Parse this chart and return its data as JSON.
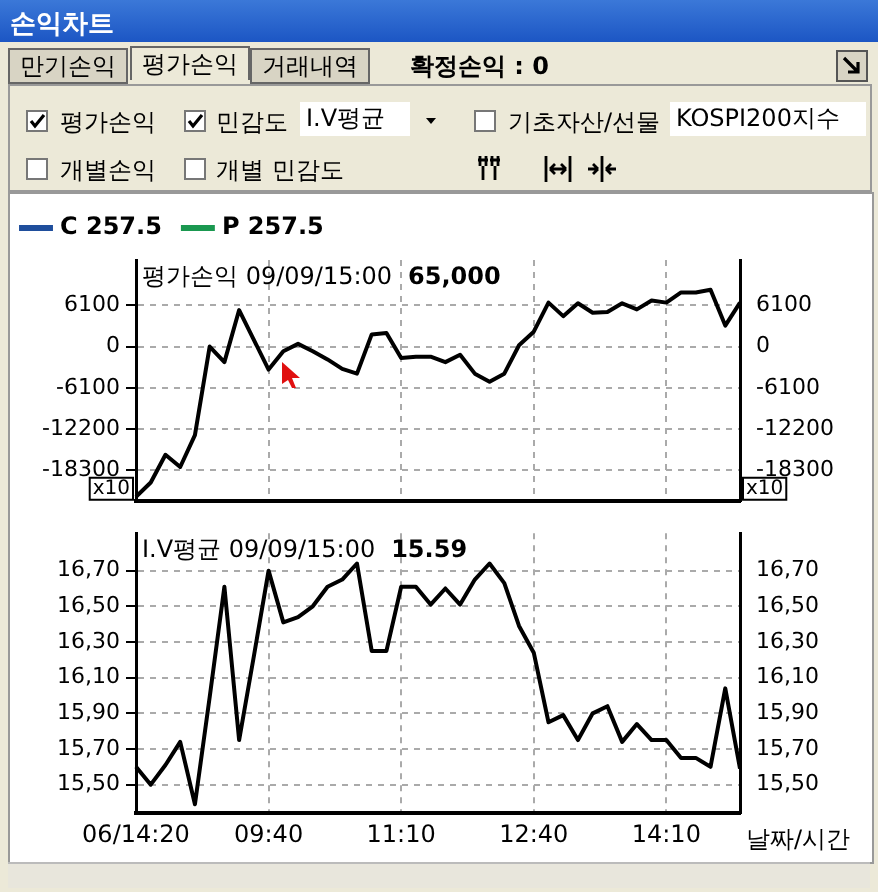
{
  "chart_data": [
    {
      "type": "other",
      "title": "손익차트",
      "annotations": [
        "만기손익",
        "평가손익",
        "거래내역",
        "확정손익 : 0",
        "평가손익",
        "민감도",
        "I.V평균",
        "기초자산/선물",
        "KOSPI200지수",
        "개별손익",
        "개별 민감도"
      ]
    },
    {
      "type": "line",
      "title": "평가손익 09/09/15:00",
      "subtitle": "65,000",
      "categories": [
        null,
        null,
        null,
        null,
        null,
        null,
        null,
        null,
        null,
        null,
        null,
        null,
        null,
        null,
        null,
        null,
        null,
        null,
        null,
        null,
        null,
        null,
        null,
        null,
        null,
        null,
        null,
        null,
        null,
        null,
        null,
        null,
        null,
        null,
        null,
        null,
        null,
        null,
        null,
        null,
        null,
        null
      ],
      "series": [
        {
          "color": "#000000",
          "values": [
            -22200,
            -20100,
            -16000,
            -17800,
            -13100,
            0,
            -2300,
            5400,
            1000,
            -3400,
            -700,
            400,
            -700,
            -1900,
            -3300,
            -4000,
            1800,
            2000,
            -1700,
            -1500,
            -1500,
            -2300,
            -1200,
            -4000,
            -5200,
            -4000,
            200,
            2200,
            6500,
            4500,
            6400,
            5000,
            5100,
            6400,
            5500,
            6800,
            6500,
            8000,
            8000,
            8400,
            3100,
            6500
          ]
        },
        {
          "name": "C 257.5",
          "color": "#1f4e9c",
          "values": [
            null,
            null,
            null,
            null,
            null,
            null,
            null,
            null,
            null,
            null,
            null,
            null,
            null,
            null,
            null,
            null,
            null,
            null,
            null,
            null,
            null,
            null,
            null,
            null,
            null,
            null,
            null,
            null,
            null,
            null,
            null,
            null,
            null,
            null,
            null,
            null,
            null,
            null,
            null,
            null,
            null,
            null
          ]
        },
        {
          "name": "P 257.5",
          "color": "#1a9850",
          "values": [
            null,
            null,
            null,
            null,
            null,
            null,
            null,
            null,
            null,
            null,
            null,
            null,
            null,
            null,
            null,
            null,
            null,
            null,
            null,
            null,
            null,
            null,
            null,
            null,
            null,
            null,
            null,
            null,
            null,
            null,
            null,
            null,
            null,
            null,
            null,
            null,
            null,
            null,
            null,
            null,
            null,
            null
          ]
        }
      ],
      "ylim": [
        -22800,
        12800
      ],
      "yticks": [
        -18300,
        -12200,
        -6100,
        0,
        6100
      ],
      "y2lim": [
        -22800,
        12800
      ],
      "y2ticks": [
        -18300,
        -12200,
        -6100,
        0,
        6100
      ],
      "annotations": [
        "x10",
        "x10"
      ],
      "grid": true,
      "legend": "top left",
      "tick_labels": "y"
    },
    {
      "type": "line",
      "title": "I.V평균 09/09/15:00",
      "subtitle": "15.59",
      "xlabel": "날짜/시간",
      "categories": [
        "06/14:20",
        null,
        null,
        null,
        null,
        null,
        null,
        null,
        null,
        "09:40",
        null,
        null,
        null,
        null,
        null,
        null,
        null,
        null,
        "11:10",
        null,
        null,
        null,
        null,
        null,
        null,
        null,
        null,
        "12:40",
        null,
        null,
        null,
        null,
        null,
        null,
        null,
        null,
        "14:10",
        null,
        null,
        null,
        null,
        null
      ],
      "series": [
        {
          "color": "#000000",
          "values": [
            15.6,
            15.5,
            15.61,
            15.74,
            15.39,
            15.99,
            16.61,
            15.75,
            16.22,
            16.7,
            16.41,
            16.44,
            16.5,
            16.61,
            16.65,
            16.74,
            16.25,
            16.25,
            16.61,
            16.61,
            16.51,
            16.6,
            16.51,
            16.65,
            16.74,
            16.63,
            16.39,
            16.24,
            15.85,
            15.89,
            15.75,
            15.9,
            15.94,
            15.74,
            15.84,
            15.75,
            15.75,
            15.65,
            15.65,
            15.6,
            16.04,
            15.59
          ]
        }
      ],
      "ylim": [
        15.34,
        16.91
      ],
      "yticks": [
        {
          "value": 15.5,
          "label": "15,50"
        },
        {
          "value": 15.7,
          "label": "15,70"
        },
        {
          "value": 15.9,
          "label": "15,90"
        },
        {
          "value": 16.1,
          "label": "16,10"
        },
        {
          "value": 16.3,
          "label": "16,30"
        },
        {
          "value": 16.5,
          "label": "16,50"
        },
        {
          "value": 16.7,
          "label": "16,70"
        }
      ],
      "y2lim": [
        15.34,
        16.91
      ],
      "y2ticks": [
        {
          "value": 15.5,
          "label": "15,50"
        },
        {
          "value": 15.7,
          "label": "15,70"
        },
        {
          "value": 15.9,
          "label": "15,90"
        },
        {
          "value": 16.1,
          "label": "16,10"
        },
        {
          "value": 16.3,
          "label": "16,30"
        },
        {
          "value": 16.5,
          "label": "16,50"
        },
        {
          "value": 16.7,
          "label": "16,70"
        }
      ],
      "grid": true
    }
  ]
}
